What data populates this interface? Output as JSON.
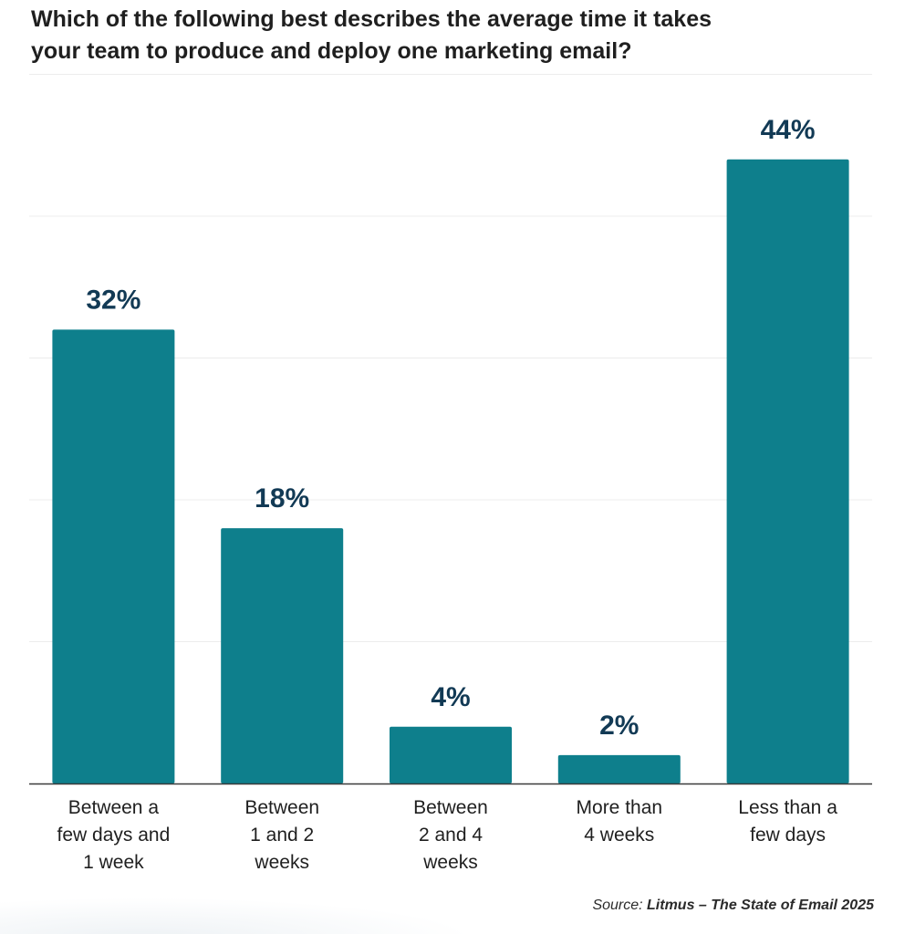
{
  "title_lines": [
    "Which of the following best describes the average time it takes",
    "your team to produce and deploy one marketing email?"
  ],
  "colors": {
    "bar": "#0e7f8c",
    "value_label": "#123a55",
    "axis": "#3a3a3a",
    "grid": "#ececec",
    "category_label": "#1f1f1f"
  },
  "chart_data": {
    "type": "bar",
    "categories": [
      [
        "Between a",
        "few days and",
        "1 week"
      ],
      [
        "Between",
        "1 and 2",
        "weeks"
      ],
      [
        "Between",
        "2 and 4",
        "weeks"
      ],
      [
        "More than",
        "4 weeks"
      ],
      [
        "Less than a",
        "few days"
      ]
    ],
    "values": [
      32,
      18,
      4,
      2,
      44
    ],
    "value_labels": [
      "32%",
      "18%",
      "4%",
      "2%",
      "44%"
    ],
    "ylim": [
      0,
      50
    ],
    "grid": true,
    "legend": "none",
    "xlabel": "",
    "ylabel": ""
  },
  "source": {
    "prefix": "Source: ",
    "name": "Litmus – The State of Email 2025"
  }
}
